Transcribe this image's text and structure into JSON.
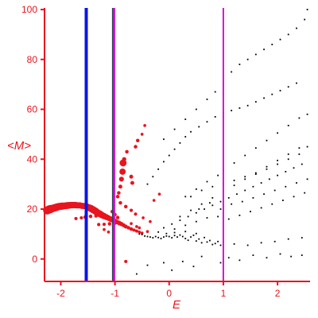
{
  "chart_data": {
    "type": "scatter",
    "xlabel": "E",
    "ylabel": "<M>",
    "xlim": [
      -2.3,
      2.6
    ],
    "ylim": [
      -9,
      100
    ],
    "x_ticks": [
      -2,
      -1,
      0,
      1,
      2
    ],
    "y_ticks": [
      0,
      20,
      40,
      60,
      80,
      100
    ],
    "colors": {
      "axis": "#e8141e",
      "black_series": "#000000",
      "red_series": "#e8141e",
      "blue_line": "#0a14e6",
      "dark_line": "#3c3c5a",
      "magenta_line": "#d214d2"
    },
    "vertical_lines": [
      {
        "x": -1.53,
        "color": "#0a14e6",
        "width": 4
      },
      {
        "x": -1.04,
        "color": "#3c3c5a",
        "width": 2
      },
      {
        "x": -1.01,
        "color": "#d214d2",
        "width": 2
      },
      {
        "x": 1.0,
        "color": "#d214d2",
        "width": 2
      }
    ],
    "series": [
      {
        "color": "#e8141e",
        "points": [
          [
            -2.25,
            19.5,
            1.0
          ],
          [
            -2.22,
            19.8,
            1.0
          ],
          [
            -2.19,
            20.0,
            1.0
          ],
          [
            -2.16,
            20.2,
            0.9
          ],
          [
            -2.13,
            20.4,
            0.9
          ],
          [
            -2.1,
            20.6,
            0.9
          ],
          [
            -2.07,
            20.8,
            0.9
          ],
          [
            -2.04,
            21.0,
            0.85
          ],
          [
            -2.01,
            21.1,
            0.85
          ],
          [
            -1.97,
            21.2,
            0.85
          ],
          [
            -1.93,
            21.3,
            0.8
          ],
          [
            -1.89,
            21.4,
            0.8
          ],
          [
            -1.85,
            21.5,
            0.8
          ],
          [
            -1.81,
            21.6,
            0.75
          ],
          [
            -1.77,
            21.6,
            0.75
          ],
          [
            -1.73,
            21.6,
            0.75
          ],
          [
            -1.69,
            21.5,
            0.7
          ],
          [
            -1.65,
            21.5,
            0.7
          ],
          [
            -1.61,
            21.3,
            0.7
          ],
          [
            -1.57,
            21.2,
            0.7
          ],
          [
            -1.52,
            21.0,
            0.75
          ],
          [
            -1.48,
            20.6,
            0.8
          ],
          [
            -1.44,
            20.2,
            0.85
          ],
          [
            -1.4,
            19.7,
            0.85
          ],
          [
            -1.36,
            19.2,
            0.85
          ],
          [
            -1.32,
            18.6,
            0.8
          ],
          [
            -1.28,
            18.1,
            0.8
          ],
          [
            -1.24,
            17.6,
            0.75
          ],
          [
            -1.2,
            17.2,
            0.7
          ],
          [
            -1.16,
            16.8,
            0.65
          ],
          [
            -1.12,
            16.4,
            0.6
          ],
          [
            -1.08,
            16.0,
            0.6
          ],
          [
            -1.04,
            15.6,
            0.55
          ],
          [
            -1.0,
            15.2,
            0.5
          ],
          [
            -0.96,
            14.8,
            0.45
          ],
          [
            -0.92,
            14.4,
            0.45
          ],
          [
            -0.88,
            14.0,
            0.4
          ],
          [
            -0.84,
            13.5,
            0.35
          ],
          [
            -0.8,
            13.0,
            0.35
          ],
          [
            -0.75,
            12.5,
            0.3
          ],
          [
            -0.7,
            12.0,
            0.3
          ],
          [
            -0.65,
            11.6,
            0.25
          ],
          [
            -0.6,
            11.2,
            0.25
          ],
          [
            -0.55,
            10.8,
            0.2
          ],
          [
            -0.5,
            10.4,
            0.2
          ],
          [
            -1.55,
            16.8,
            0.3
          ],
          [
            -1.45,
            17.1,
            0.3
          ],
          [
            -1.35,
            17.3,
            0.3
          ],
          [
            -1.25,
            17.4,
            0.3
          ],
          [
            -1.15,
            17.2,
            0.3
          ],
          [
            -1.72,
            16.2,
            0.25
          ],
          [
            -1.62,
            16.5,
            0.25
          ],
          [
            -1.3,
            13.8,
            0.25
          ],
          [
            -1.2,
            13.9,
            0.25
          ],
          [
            -1.1,
            14.1,
            0.3
          ],
          [
            -1.0,
            14.4,
            0.3
          ],
          [
            -0.95,
            16.6,
            0.3
          ],
          [
            -1.0,
            17.8,
            0.3
          ],
          [
            -1.05,
            19.0,
            0.3
          ],
          [
            -0.95,
            25.0,
            0.3
          ],
          [
            -0.93,
            26.5,
            0.3
          ],
          [
            -0.9,
            29.0,
            0.35
          ],
          [
            -0.88,
            32.0,
            0.5
          ],
          [
            -0.86,
            35.0,
            0.7
          ],
          [
            -0.85,
            38.5,
            0.8
          ],
          [
            -0.83,
            40.0,
            0.4
          ],
          [
            -0.78,
            43.0,
            0.3
          ],
          [
            -0.7,
            33.0,
            0.35
          ],
          [
            -0.68,
            30.5,
            0.35
          ],
          [
            -0.62,
            45.0,
            0.3
          ],
          [
            -0.58,
            47.5,
            0.3
          ],
          [
            -0.5,
            50.0,
            0.2
          ],
          [
            -0.45,
            53.5,
            0.2
          ],
          [
            -0.9,
            22.5,
            0.3
          ],
          [
            -0.8,
            21.0,
            0.3
          ],
          [
            -0.7,
            19.5,
            0.25
          ],
          [
            -0.62,
            18.0,
            0.25
          ],
          [
            -0.48,
            16.5,
            0.2
          ],
          [
            -0.35,
            15.0,
            0.2
          ],
          [
            -0.28,
            23.5,
            0.2
          ],
          [
            -0.18,
            26.0,
            0.2
          ],
          [
            -1.2,
            11.8,
            0.2
          ],
          [
            -1.12,
            10.8,
            0.2
          ],
          [
            -0.7,
            14.2,
            0.2
          ],
          [
            -0.6,
            13.0,
            0.2
          ],
          [
            -0.55,
            12.5,
            0.2
          ],
          [
            -0.4,
            11.0,
            0.2
          ],
          [
            -0.8,
            -1.0,
            0.25
          ]
        ]
      },
      {
        "color": "#000000",
        "points": [
          [
            -0.55,
            10.0
          ],
          [
            -0.5,
            9.8
          ],
          [
            -0.45,
            9.2
          ],
          [
            -0.4,
            9.0
          ],
          [
            -0.35,
            8.8
          ],
          [
            -0.3,
            8.5
          ],
          [
            -0.25,
            9.0
          ],
          [
            -0.2,
            8.6
          ],
          [
            -0.15,
            8.2
          ],
          [
            -0.1,
            8.8
          ],
          [
            -0.05,
            9.2
          ],
          [
            0.0,
            9.0
          ],
          [
            0.05,
            8.5
          ],
          [
            0.1,
            9.4
          ],
          [
            0.15,
            8.8
          ],
          [
            0.2,
            9.6
          ],
          [
            0.25,
            9.0
          ],
          [
            0.3,
            8.2
          ],
          [
            0.35,
            7.5
          ],
          [
            0.4,
            8.8
          ],
          [
            0.45,
            9.5
          ],
          [
            0.5,
            7.2
          ],
          [
            0.55,
            8.0
          ],
          [
            0.6,
            6.5
          ],
          [
            0.65,
            8.6
          ],
          [
            0.7,
            6.8
          ],
          [
            0.75,
            7.4
          ],
          [
            0.8,
            5.8
          ],
          [
            0.85,
            6.2
          ],
          [
            0.9,
            7.0
          ],
          [
            0.95,
            5.5
          ],
          [
            1.0,
            6.6
          ],
          [
            -0.2,
            10.8
          ],
          [
            -0.05,
            10.2
          ],
          [
            0.1,
            10.6
          ],
          [
            0.3,
            11.0
          ],
          [
            0.5,
            10.2
          ],
          [
            -0.6,
            -6.0
          ],
          [
            -0.4,
            -2.5
          ],
          [
            -0.1,
            -1.5
          ],
          [
            0.05,
            -4.5
          ],
          [
            0.25,
            -1.0
          ],
          [
            0.45,
            -3.0
          ],
          [
            0.6,
            1.0
          ],
          [
            0.95,
            -1.5
          ],
          [
            1.1,
            0.5
          ],
          [
            1.3,
            -0.5
          ],
          [
            1.55,
            1.5
          ],
          [
            1.8,
            0.5
          ],
          [
            2.05,
            2.0
          ],
          [
            2.25,
            1.0
          ],
          [
            2.45,
            1.5
          ],
          [
            1.2,
            6.0
          ],
          [
            1.45,
            5.5
          ],
          [
            1.7,
            6.5
          ],
          [
            1.95,
            7.0
          ],
          [
            2.2,
            8.0
          ],
          [
            2.45,
            8.5
          ],
          [
            -0.1,
            12.5
          ],
          [
            0.05,
            14.0
          ],
          [
            0.2,
            15.5
          ],
          [
            0.35,
            17.0
          ],
          [
            0.5,
            18.5
          ],
          [
            0.65,
            20.0
          ],
          [
            0.8,
            21.5
          ],
          [
            0.95,
            23.0
          ],
          [
            1.1,
            24.5
          ],
          [
            1.25,
            26.0
          ],
          [
            1.4,
            27.5
          ],
          [
            1.55,
            29.0
          ],
          [
            1.7,
            30.5
          ],
          [
            1.85,
            32.0
          ],
          [
            2.0,
            33.5
          ],
          [
            2.15,
            35.0
          ],
          [
            2.3,
            36.5
          ],
          [
            2.45,
            38.0
          ],
          [
            0.1,
            12.0
          ],
          [
            0.3,
            13.5
          ],
          [
            0.5,
            15.0
          ],
          [
            0.7,
            16.5
          ],
          [
            0.9,
            17.0
          ],
          [
            1.1,
            16.0
          ],
          [
            1.3,
            17.5
          ],
          [
            1.5,
            19.0
          ],
          [
            1.7,
            20.5
          ],
          [
            1.9,
            22.0
          ],
          [
            2.1,
            23.5
          ],
          [
            2.3,
            25.0
          ],
          [
            2.5,
            26.5
          ],
          [
            0.2,
            17.0
          ],
          [
            0.4,
            19.5
          ],
          [
            0.6,
            22.0
          ],
          [
            0.8,
            24.5
          ],
          [
            1.0,
            27.0
          ],
          [
            1.2,
            29.5
          ],
          [
            1.4,
            32.0
          ],
          [
            1.6,
            34.5
          ],
          [
            1.8,
            37.0
          ],
          [
            2.0,
            39.5
          ],
          [
            2.2,
            42.0
          ],
          [
            2.4,
            44.5
          ],
          [
            0.3,
            25.0
          ],
          [
            0.5,
            28.0
          ],
          [
            0.7,
            31.0
          ],
          [
            0.9,
            33.5
          ],
          [
            1.0,
            35.5
          ],
          [
            1.2,
            38.5
          ],
          [
            1.4,
            41.5
          ],
          [
            1.6,
            44.5
          ],
          [
            1.8,
            47.5
          ],
          [
            2.0,
            50.5
          ],
          [
            2.2,
            53.5
          ],
          [
            2.4,
            56.5
          ],
          [
            -0.4,
            30.0
          ],
          [
            -0.3,
            33.0
          ],
          [
            -0.2,
            36.0
          ],
          [
            -0.1,
            39.0
          ],
          [
            0.0,
            41.5
          ],
          [
            0.1,
            44.0
          ],
          [
            0.2,
            46.5
          ],
          [
            0.3,
            49.0
          ],
          [
            0.4,
            51.0
          ],
          [
            0.55,
            53.0
          ],
          [
            0.7,
            55.0
          ],
          [
            0.85,
            57.0
          ],
          [
            1.0,
            58.5
          ],
          [
            1.15,
            59.5
          ],
          [
            1.3,
            60.5
          ],
          [
            1.45,
            61.5
          ],
          [
            1.6,
            63.0
          ],
          [
            1.75,
            64.5
          ],
          [
            1.9,
            66.0
          ],
          [
            2.05,
            67.5
          ],
          [
            2.2,
            69.0
          ],
          [
            2.35,
            70.5
          ],
          [
            2.55,
            58.0
          ],
          [
            -0.1,
            48.0
          ],
          [
            0.1,
            52.0
          ],
          [
            0.3,
            56.0
          ],
          [
            0.5,
            60.0
          ],
          [
            0.7,
            64.0
          ],
          [
            0.85,
            67.0
          ],
          [
            1.0,
            70.0
          ],
          [
            1.15,
            75.0
          ],
          [
            1.3,
            78.0
          ],
          [
            1.45,
            80.0
          ],
          [
            1.6,
            82.0
          ],
          [
            1.75,
            84.0
          ],
          [
            1.9,
            86.0
          ],
          [
            2.05,
            88.0
          ],
          [
            2.2,
            90.0
          ],
          [
            2.35,
            92.5
          ],
          [
            2.5,
            96.0
          ],
          [
            2.55,
            100.0
          ],
          [
            0.4,
            25.0
          ],
          [
            0.6,
            27.5
          ],
          [
            0.8,
            29.0
          ],
          [
            1.0,
            30.0
          ],
          [
            1.2,
            31.5
          ],
          [
            1.4,
            33.0
          ],
          [
            1.6,
            34.0
          ],
          [
            1.8,
            36.0
          ],
          [
            2.0,
            38.0
          ],
          [
            2.2,
            40.0
          ],
          [
            2.4,
            42.0
          ],
          [
            2.55,
            45.0
          ],
          [
            0.55,
            20.0
          ],
          [
            0.75,
            22.5
          ],
          [
            0.95,
            20.0
          ],
          [
            1.15,
            22.0
          ],
          [
            1.35,
            23.0
          ],
          [
            1.55,
            24.5
          ],
          [
            1.75,
            26.0
          ],
          [
            1.95,
            27.5
          ],
          [
            2.15,
            29.0
          ],
          [
            2.35,
            30.5
          ],
          [
            2.55,
            32.0
          ]
        ]
      }
    ]
  }
}
